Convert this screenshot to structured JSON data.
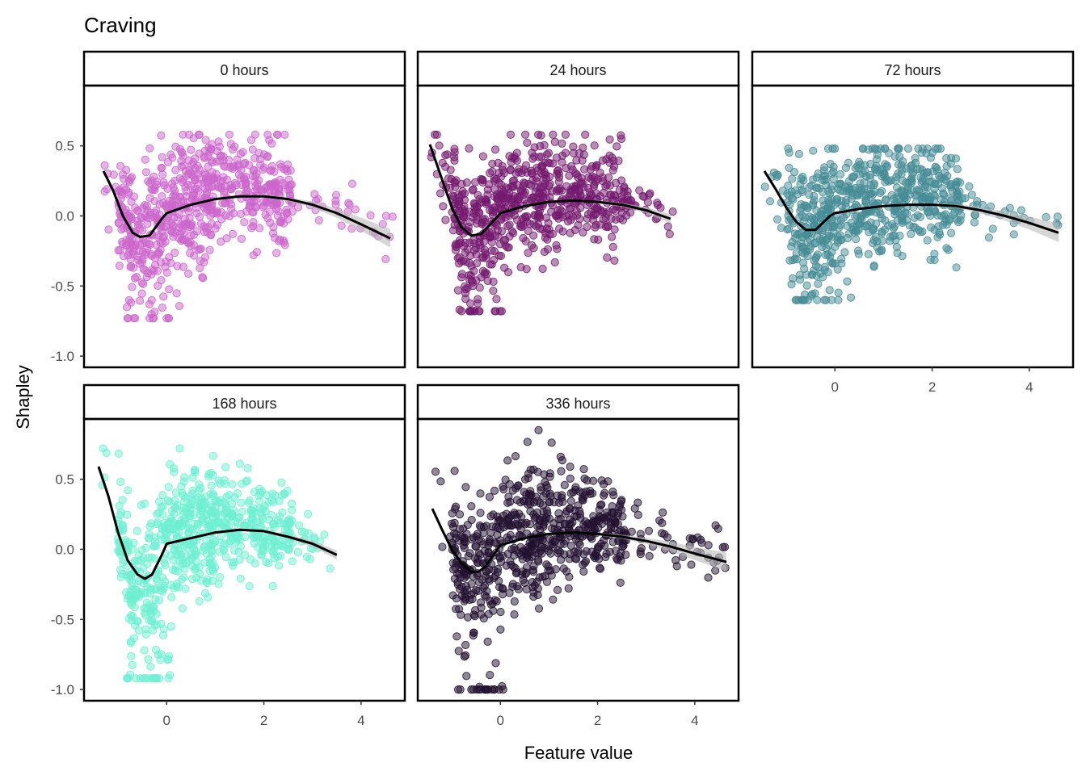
{
  "chart_data": {
    "type": "scatter",
    "title": "Craving",
    "xlabel": "Feature value",
    "ylabel": "Shapley",
    "xlim": [
      -1.7,
      4.9
    ],
    "ylim": [
      -1.08,
      0.93
    ],
    "x_ticks": [
      0,
      2,
      4
    ],
    "x_tick_labels": [
      "0",
      "2",
      "4"
    ],
    "y_ticks": [
      0.5,
      0.0,
      -0.5,
      -1.0
    ],
    "y_tick_labels": [
      "0.5",
      "0.0",
      "-0.5",
      "-1.0"
    ],
    "grid": false,
    "legend": "none",
    "facets": [
      {
        "label": "0 hours",
        "color": "#CC66CC",
        "x_range": [
          -1.3,
          4.65
        ],
        "points_summary": {
          "y_max": 0.58,
          "y_min": -0.73
        },
        "smooth": {
          "x": [
            -1.3,
            -1.1,
            -0.9,
            -0.7,
            -0.55,
            -0.35,
            -0.1,
            0.0,
            0.5,
            1.0,
            1.5,
            2.0,
            2.5,
            3.0,
            3.5,
            4.0,
            4.6
          ],
          "y": [
            0.32,
            0.18,
            0.0,
            -0.12,
            -0.15,
            -0.14,
            -0.02,
            0.02,
            0.08,
            0.12,
            0.14,
            0.14,
            0.12,
            0.08,
            0.02,
            -0.06,
            -0.16
          ]
        }
      },
      {
        "label": "24 hours",
        "color": "#74196E",
        "x_range": [
          -1.45,
          3.55
        ],
        "points_summary": {
          "y_max": 0.58,
          "y_min": -0.68
        },
        "smooth": {
          "x": [
            -1.45,
            -1.2,
            -1.0,
            -0.8,
            -0.6,
            -0.4,
            -0.1,
            0.0,
            0.5,
            1.0,
            1.5,
            2.0,
            2.5,
            3.0,
            3.5
          ],
          "y": [
            0.51,
            0.26,
            0.06,
            -0.08,
            -0.14,
            -0.13,
            -0.02,
            0.02,
            0.07,
            0.1,
            0.11,
            0.1,
            0.08,
            0.04,
            -0.02
          ]
        }
      },
      {
        "label": "72 hours",
        "color": "#458C95",
        "x_range": [
          -1.45,
          4.6
        ],
        "points_summary": {
          "y_max": 0.48,
          "y_min": -0.6
        },
        "smooth": {
          "x": [
            -1.45,
            -1.2,
            -1.0,
            -0.8,
            -0.6,
            -0.4,
            -0.1,
            0.0,
            0.5,
            1.0,
            1.5,
            2.0,
            2.5,
            3.0,
            3.5,
            4.0,
            4.6
          ],
          "y": [
            0.32,
            0.18,
            0.06,
            -0.04,
            -0.1,
            -0.1,
            0.0,
            0.02,
            0.05,
            0.07,
            0.08,
            0.08,
            0.07,
            0.04,
            0.0,
            -0.05,
            -0.12
          ]
        }
      },
      {
        "label": "168 hours",
        "color": "#6EEFD2",
        "x_range": [
          -1.4,
          3.55
        ],
        "points_summary": {
          "y_max": 0.72,
          "y_min": -0.92
        },
        "smooth": {
          "x": [
            -1.4,
            -1.2,
            -1.0,
            -0.8,
            -0.6,
            -0.45,
            -0.3,
            -0.1,
            0.0,
            0.5,
            1.0,
            1.5,
            2.0,
            2.5,
            3.0,
            3.5
          ],
          "y": [
            0.59,
            0.38,
            0.12,
            -0.08,
            -0.18,
            -0.21,
            -0.18,
            -0.04,
            0.04,
            0.08,
            0.12,
            0.14,
            0.13,
            0.09,
            0.04,
            -0.04
          ]
        }
      },
      {
        "label": "336 hours",
        "color": "#22102F",
        "x_range": [
          -1.4,
          4.65
        ],
        "points_summary": {
          "y_max": 0.85,
          "y_min": -1.0
        },
        "smooth": {
          "x": [
            -1.4,
            -1.2,
            -1.0,
            -0.8,
            -0.6,
            -0.45,
            -0.3,
            -0.1,
            0.0,
            0.5,
            1.0,
            1.5,
            2.0,
            2.5,
            3.0,
            3.5,
            4.0,
            4.65
          ],
          "y": [
            0.29,
            0.14,
            0.0,
            -0.1,
            -0.16,
            -0.16,
            -0.12,
            -0.02,
            0.03,
            0.08,
            0.11,
            0.12,
            0.11,
            0.09,
            0.06,
            0.02,
            -0.03,
            -0.09
          ]
        }
      }
    ]
  }
}
